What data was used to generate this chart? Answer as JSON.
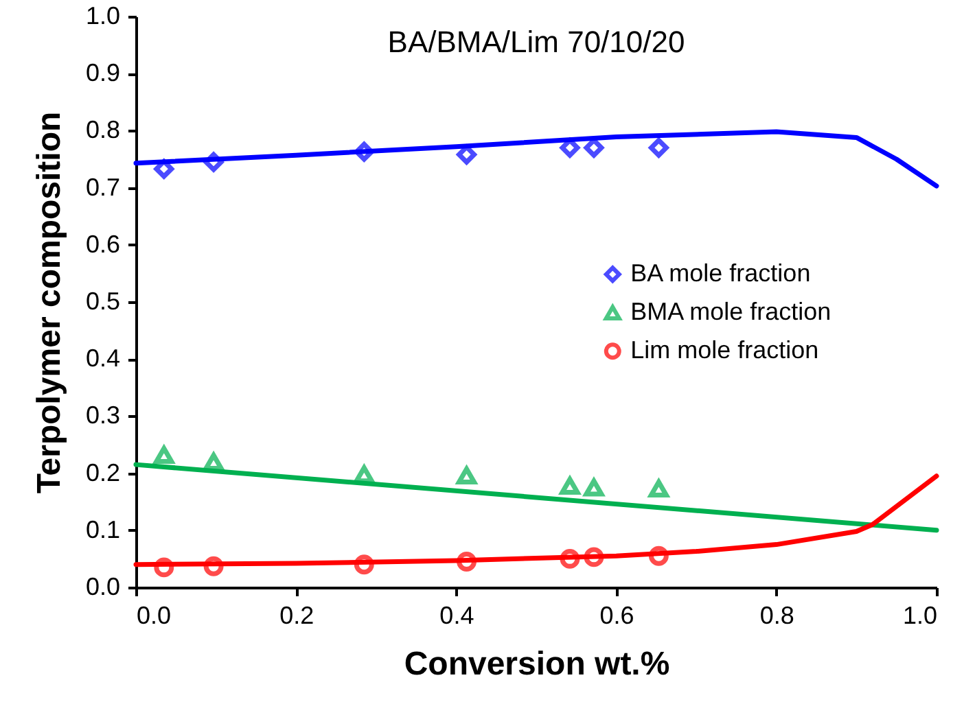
{
  "chart_data": {
    "type": "scatter",
    "title": "BA/BMA/Lim  70/10/20",
    "xlabel": "Conversion wt.%",
    "ylabel": "Terpolymer composition",
    "xlim": [
      0,
      1
    ],
    "ylim": [
      0,
      1
    ],
    "xticks": [
      {
        "value": 0,
        "label": "0.0"
      },
      {
        "value": 0.2,
        "label": "0.2"
      },
      {
        "value": 0.4,
        "label": "0.4"
      },
      {
        "value": 0.6,
        "label": "0.6"
      },
      {
        "value": 0.8,
        "label": "0.8"
      },
      {
        "value": 1,
        "label": "1.0"
      }
    ],
    "yticks": [
      {
        "value": 0,
        "label": "0.0"
      },
      {
        "value": 0.1,
        "label": "0.1"
      },
      {
        "value": 0.2,
        "label": "0.2"
      },
      {
        "value": 0.3,
        "label": "0.3"
      },
      {
        "value": 0.4,
        "label": "0.4"
      },
      {
        "value": 0.5,
        "label": "0.5"
      },
      {
        "value": 0.6,
        "label": "0.6"
      },
      {
        "value": 0.7,
        "label": "0.7"
      },
      {
        "value": 0.8,
        "label": "0.8"
      },
      {
        "value": 0.9,
        "label": "0.9"
      },
      {
        "value": 1,
        "label": "1.0"
      }
    ],
    "legend": "right",
    "grid": false,
    "x": [
      0.035,
      0.097,
      0.285,
      0.413,
      0.542,
      0.572,
      0.653
    ],
    "series": [
      {
        "type": "line",
        "color": "#0000ff",
        "line_style": "solid",
        "x": [
          0,
          0.2,
          0.4,
          0.6,
          0.8,
          0.9,
          0.95,
          1.0
        ],
        "values": [
          0.743,
          0.757,
          0.772,
          0.789,
          0.798,
          0.788,
          0.75,
          0.703
        ]
      },
      {
        "type": "line",
        "color": "#00b050",
        "line_style": "solid",
        "x": [
          0,
          1.0
        ],
        "values": [
          0.215,
          0.1
        ]
      },
      {
        "type": "line",
        "color": "#ff0000",
        "line_style": "solid",
        "x": [
          0,
          0.2,
          0.4,
          0.6,
          0.7,
          0.8,
          0.9,
          0.92,
          1.0
        ],
        "values": [
          0.04,
          0.042,
          0.047,
          0.055,
          0.063,
          0.075,
          0.098,
          0.11,
          0.195
        ]
      },
      {
        "name": "BA mole fraction",
        "color": "#0000ff",
        "marker": "diamond",
        "values": [
          0.733,
          0.745,
          0.763,
          0.758,
          0.77,
          0.77,
          0.77
        ]
      },
      {
        "name": "BMA mole fraction",
        "color": "#00b050",
        "marker": "triangle",
        "values": [
          0.232,
          0.22,
          0.198,
          0.196,
          0.178,
          0.175,
          0.173
        ]
      },
      {
        "name": "Lim mole fraction",
        "color": "#ff0000",
        "marker": "circle",
        "values": [
          0.035,
          0.037,
          0.04,
          0.045,
          0.05,
          0.053,
          0.055
        ]
      }
    ]
  }
}
